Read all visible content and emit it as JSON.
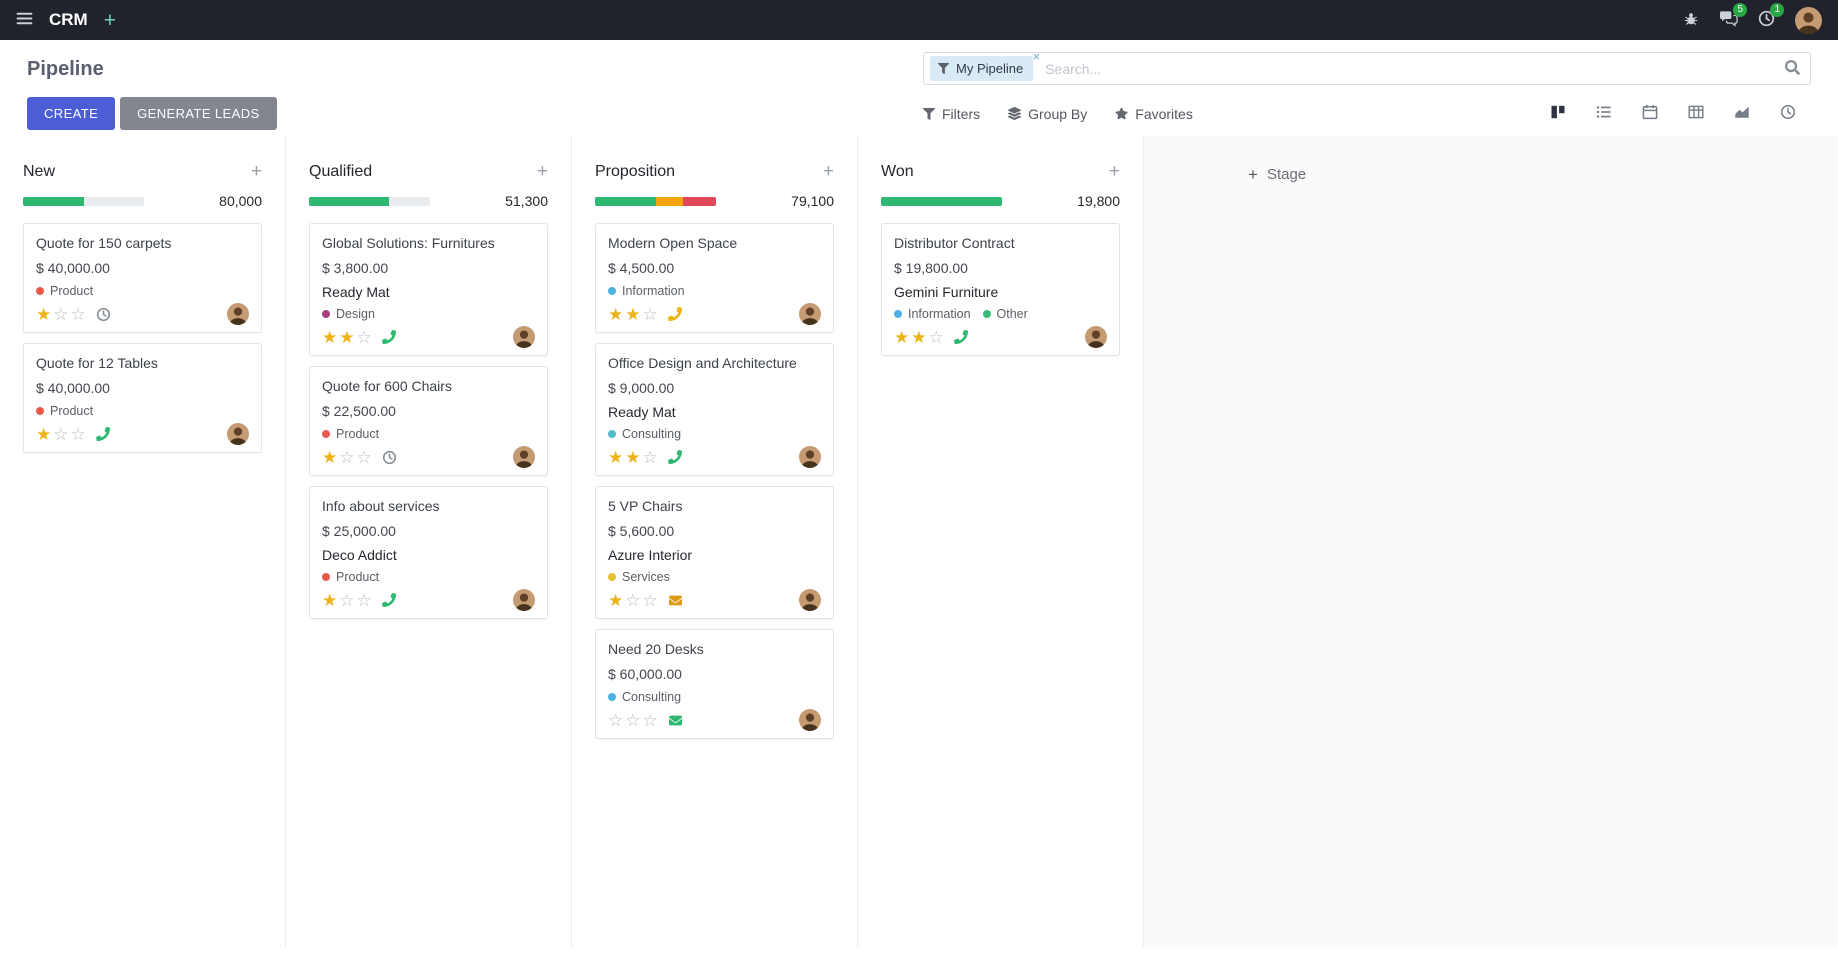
{
  "topbar": {
    "app_name": "CRM",
    "messages_badge": "5",
    "activities_badge": "1"
  },
  "control_panel": {
    "title": "Pipeline",
    "buttons": {
      "create": "CREATE",
      "generate_leads": "GENERATE LEADS"
    },
    "search": {
      "facet_label": "My Pipeline",
      "placeholder": "Search..."
    },
    "filter_menus": {
      "filters": "Filters",
      "group_by": "Group By",
      "favorites": "Favorites"
    }
  },
  "icons": {
    "navbar_add": "+",
    "column_add": "+",
    "stage_add": "+",
    "facet_remove": "×"
  },
  "colors": {
    "primary": "#4c5ed6",
    "secondary": "#83858f",
    "success": "#2eb872",
    "warning": "#f2a50c",
    "danger": "#e2485a",
    "progress_bg": "#e9ecef",
    "star_filled": "#edb215",
    "star_empty": "#b9bdc2"
  },
  "board": {
    "add_stage": "Stage",
    "columns": [
      {
        "name": "New",
        "total": "80,000",
        "progress": [
          {
            "color": "success",
            "pct": 50
          },
          {
            "color": "bg",
            "pct": 50
          }
        ],
        "cards": [
          {
            "title": "Quote for 150 carpets",
            "amount": "$ 40,000.00",
            "partner": "",
            "tags": [
              {
                "label": "Product",
                "color": "#e8594a"
              }
            ],
            "stars": 1,
            "activity": {
              "type": "clock",
              "color": "#8a9098"
            }
          },
          {
            "title": "Quote for 12 Tables",
            "amount": "$ 40,000.00",
            "partner": "",
            "tags": [
              {
                "label": "Product",
                "color": "#e8594a"
              }
            ],
            "stars": 1,
            "activity": {
              "type": "phone",
              "color": "#2eb872"
            }
          }
        ]
      },
      {
        "name": "Qualified",
        "total": "51,300",
        "progress": [
          {
            "color": "success",
            "pct": 66
          },
          {
            "color": "bg",
            "pct": 34
          }
        ],
        "cards": [
          {
            "title": "Global Solutions: Furnitures",
            "amount": "$ 3,800.00",
            "partner": "Ready Mat",
            "tags": [
              {
                "label": "Design",
                "color": "#a8427e"
              }
            ],
            "stars": 2,
            "activity": {
              "type": "phone",
              "color": "#2eb872"
            }
          },
          {
            "title": "Quote for 600 Chairs",
            "amount": "$ 22,500.00",
            "partner": "",
            "tags": [
              {
                "label": "Product",
                "color": "#e8594a"
              }
            ],
            "stars": 1,
            "activity": {
              "type": "clock",
              "color": "#8a9098"
            }
          },
          {
            "title": "Info about services",
            "amount": "$ 25,000.00",
            "partner": "Deco Addict",
            "tags": [
              {
                "label": "Product",
                "color": "#e8594a"
              }
            ],
            "stars": 1,
            "activity": {
              "type": "phone",
              "color": "#2eb872"
            }
          }
        ]
      },
      {
        "name": "Proposition",
        "total": "79,100",
        "progress": [
          {
            "color": "success",
            "pct": 50
          },
          {
            "color": "warning",
            "pct": 23
          },
          {
            "color": "danger",
            "pct": 27
          }
        ],
        "cards": [
          {
            "title": "Modern Open Space",
            "amount": "$ 4,500.00",
            "partner": "",
            "tags": [
              {
                "label": "Information",
                "color": "#4ab1e0"
              }
            ],
            "stars": 2,
            "activity": {
              "type": "phone",
              "color": "#f0b30e"
            }
          },
          {
            "title": "Office Design and Architecture",
            "amount": "$ 9,000.00",
            "partner": "Ready Mat",
            "tags": [
              {
                "label": "Consulting",
                "color": "#54bcc9"
              }
            ],
            "stars": 2,
            "activity": {
              "type": "phone",
              "color": "#2eb872"
            }
          },
          {
            "title": "5 VP Chairs",
            "amount": "$ 5,600.00",
            "partner": "Azure Interior",
            "tags": [
              {
                "label": "Services",
                "color": "#e5c030"
              }
            ],
            "stars": 1,
            "activity": {
              "type": "envelope",
              "color": "#dd9b12"
            }
          },
          {
            "title": "Need 20 Desks",
            "amount": "$ 60,000.00",
            "partner": "",
            "tags": [
              {
                "label": "Consulting",
                "color": "#4ab1e0"
              }
            ],
            "stars": 0,
            "activity": {
              "type": "envelope",
              "color": "#2eb872"
            }
          }
        ]
      },
      {
        "name": "Won",
        "total": "19,800",
        "progress": [
          {
            "color": "success",
            "pct": 100
          }
        ],
        "cards": [
          {
            "title": "Distributor Contract",
            "amount": "$ 19,800.00",
            "partner": "Gemini Furniture",
            "tags": [
              {
                "label": "Information",
                "color": "#4ab1e0"
              },
              {
                "label": "Other",
                "color": "#3cb878"
              }
            ],
            "stars": 2,
            "activity": {
              "type": "phone",
              "color": "#2eb872"
            }
          }
        ]
      }
    ]
  }
}
